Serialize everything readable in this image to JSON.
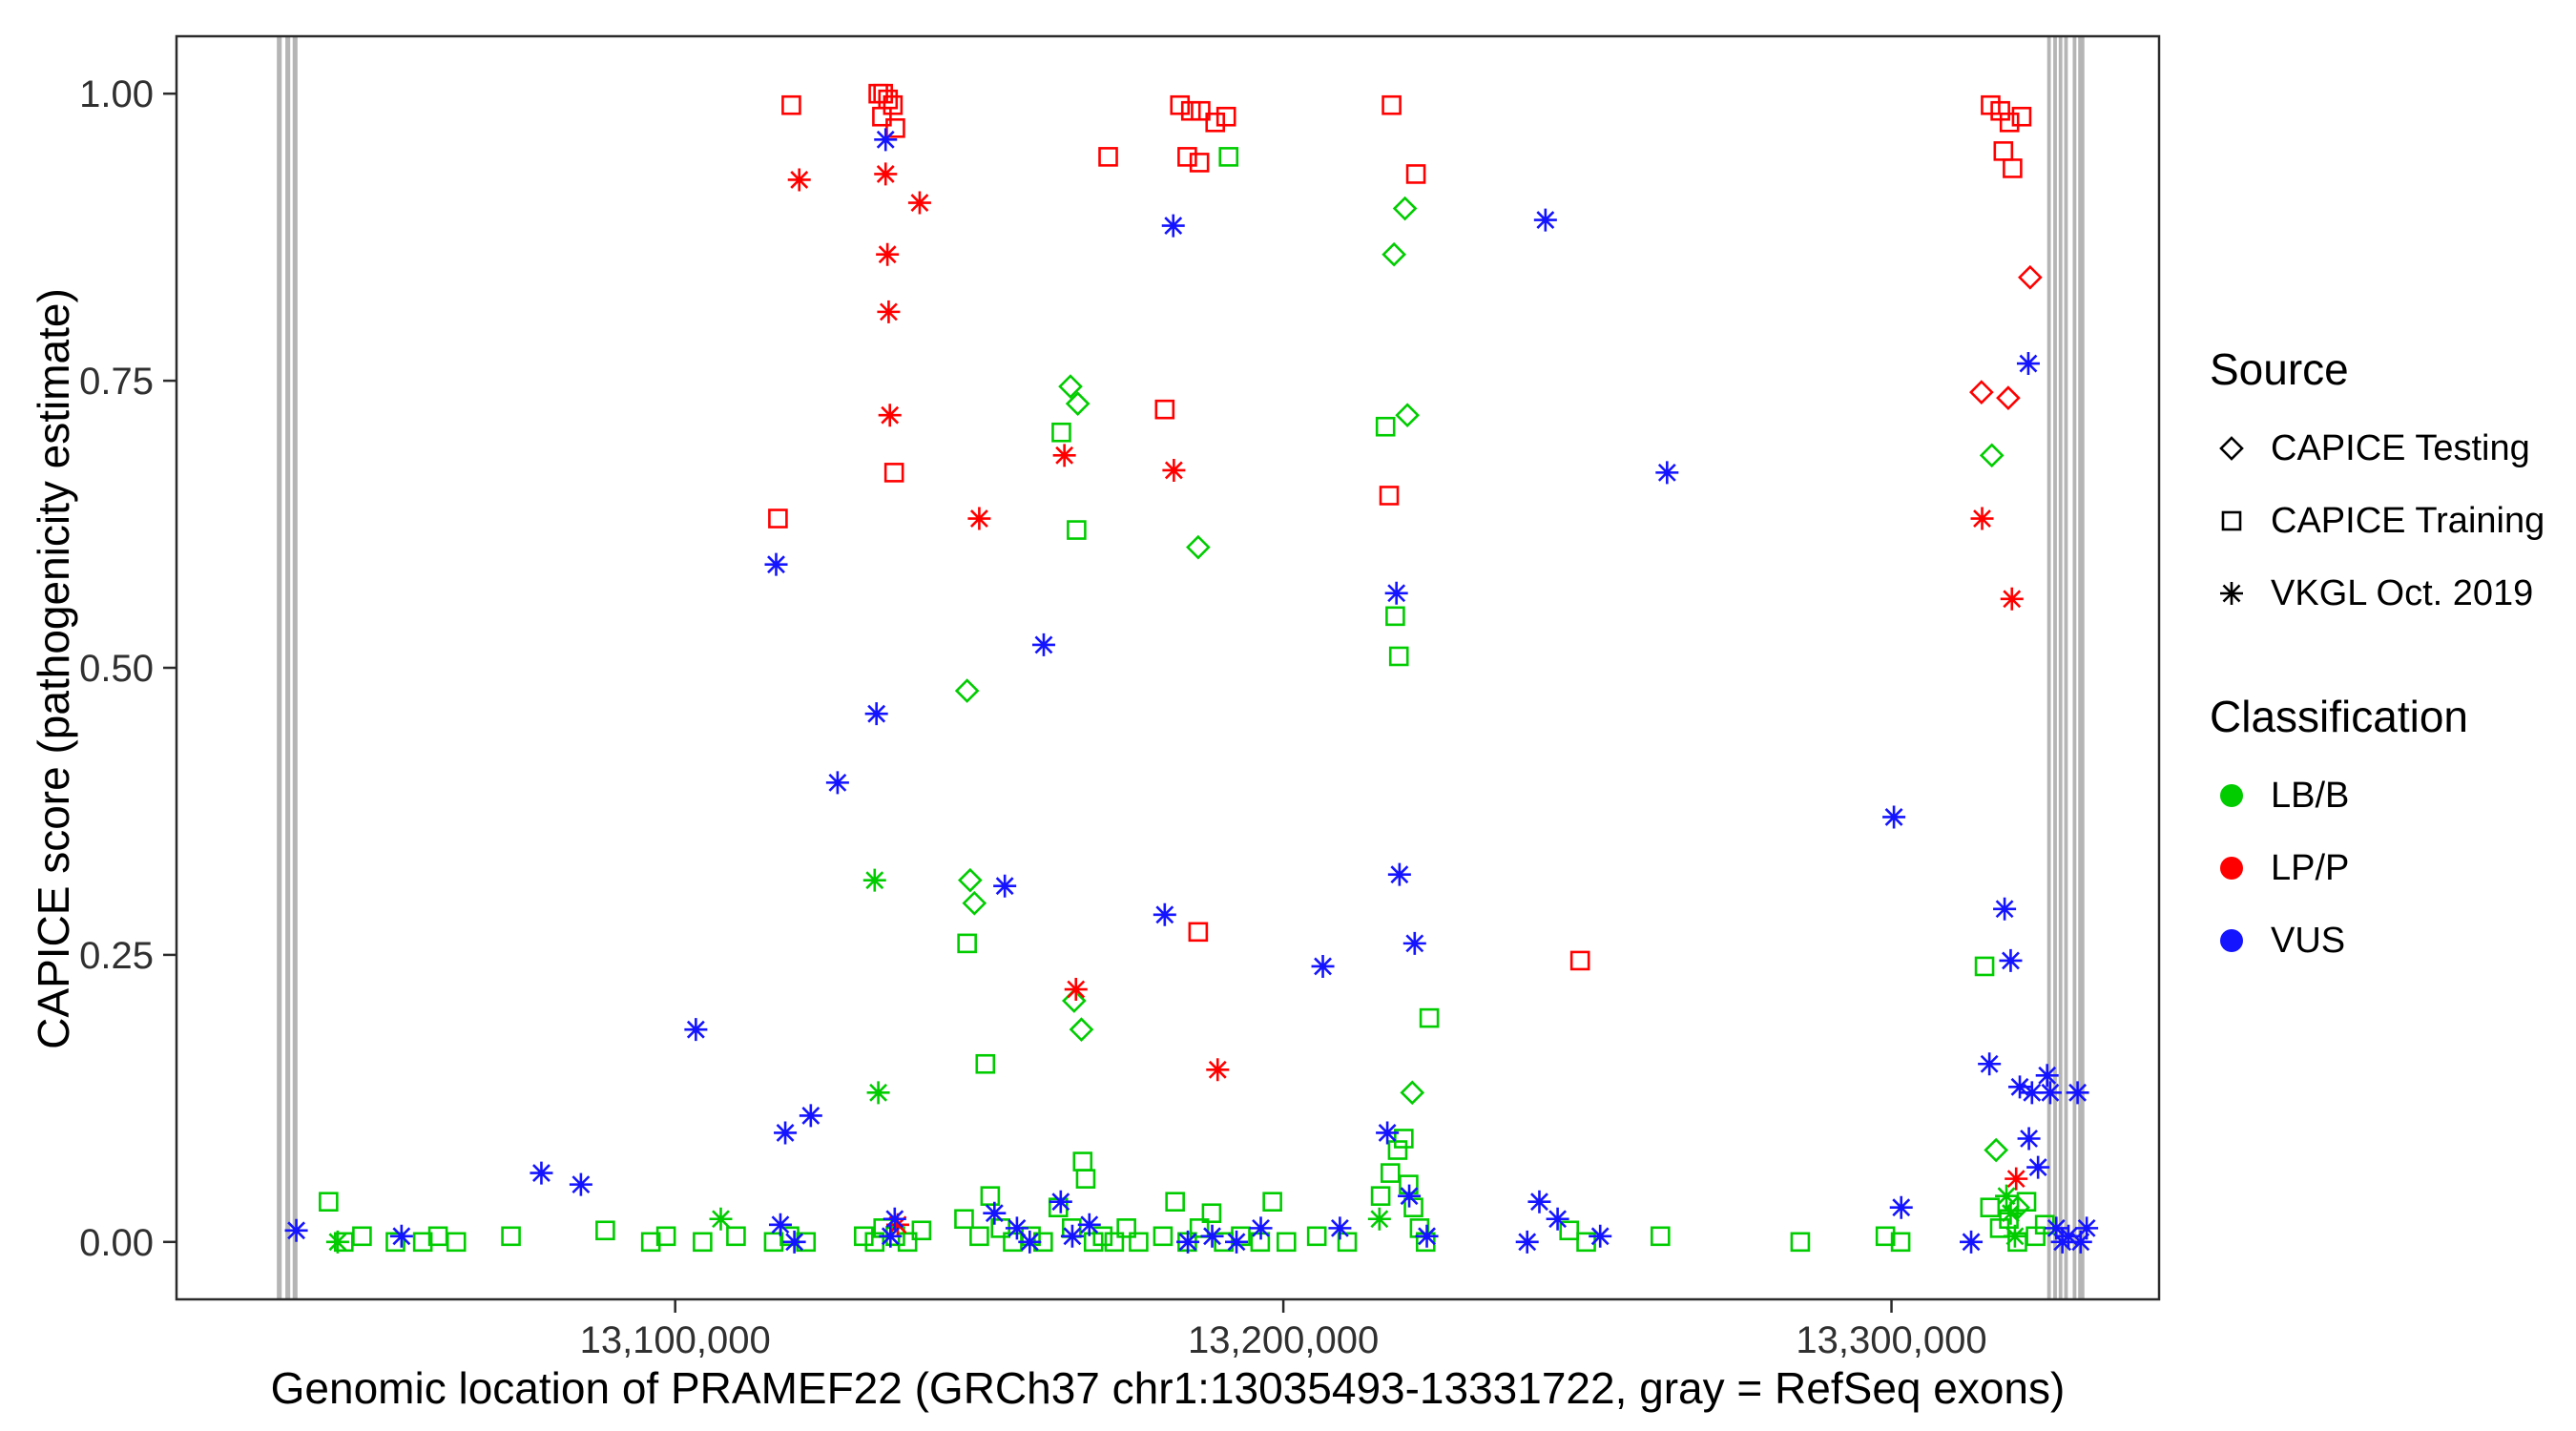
{
  "figure": {
    "background": "#ffffff",
    "panel_border_color": "#2b2b2b",
    "tick_label_color": "#303030"
  },
  "chart_data": {
    "type": "scatter",
    "title": "",
    "xlabel": "Genomic location of PRAMEF22 (GRCh37 chr1:13035493-13331722, gray = RefSeq exons)",
    "ylabel": "CAPICE score (pathogenicity estimate)",
    "xlim": [
      13018000,
      13344000
    ],
    "ylim": [
      -0.05,
      1.05
    ],
    "grid": false,
    "legend_position": "right",
    "x_ticks": [
      {
        "value": 13100000,
        "label": "13,100,000"
      },
      {
        "value": 13200000,
        "label": "13,200,000"
      },
      {
        "value": 13300000,
        "label": "13,300,000"
      }
    ],
    "y_ticks": [
      {
        "value": 0.0,
        "label": "0.00"
      },
      {
        "value": 0.25,
        "label": "0.25"
      },
      {
        "value": 0.5,
        "label": "0.50"
      },
      {
        "value": 0.75,
        "label": "0.75"
      },
      {
        "value": 1.0,
        "label": "1.00"
      }
    ],
    "exon_color": "#b5b5b5",
    "exons": [
      [
        13034500,
        13035300
      ],
      [
        13035900,
        13036700
      ],
      [
        13037100,
        13037900
      ],
      [
        13325600,
        13326200
      ],
      [
        13326600,
        13327200
      ],
      [
        13327500,
        13328100
      ],
      [
        13328400,
        13329000
      ],
      [
        13329800,
        13330400
      ],
      [
        13330700,
        13331722
      ]
    ],
    "legend": {
      "source_title": "Source",
      "source_items": [
        {
          "label": "CAPICE Testing",
          "marker": "diamond"
        },
        {
          "label": "CAPICE Training",
          "marker": "square"
        },
        {
          "label": "VKGL Oct. 2019",
          "marker": "asterisk"
        }
      ],
      "classification_title": "Classification",
      "classification_items": [
        {
          "label": "LB/B",
          "color": "#00cc00"
        },
        {
          "label": "LP/P",
          "color": "#ff0000"
        },
        {
          "label": "VUS",
          "color": "#1414ff"
        }
      ]
    },
    "series": [
      {
        "name": "CAPICE Testing / LB/B",
        "source": "CAPICE Testing",
        "classification": "LB/B",
        "marker": "diamond",
        "color": "#00cc00",
        "points": [
          [
            13148000,
            0.48
          ],
          [
            13148500,
            0.315
          ],
          [
            13149200,
            0.295
          ],
          [
            13165000,
            0.745
          ],
          [
            13166200,
            0.73
          ],
          [
            13165600,
            0.21
          ],
          [
            13166800,
            0.185
          ],
          [
            13186000,
            0.605
          ],
          [
            13218200,
            0.86
          ],
          [
            13220000,
            0.9
          ],
          [
            13220400,
            0.72
          ],
          [
            13221200,
            0.13
          ],
          [
            13316500,
            0.685
          ],
          [
            13317200,
            0.08
          ],
          [
            13320800,
            0.03
          ]
        ]
      },
      {
        "name": "CAPICE Testing / LP/P",
        "source": "CAPICE Testing",
        "classification": "LP/P",
        "marker": "diamond",
        "color": "#ff0000",
        "points": [
          [
            13322800,
            0.84
          ],
          [
            13314800,
            0.74
          ],
          [
            13319200,
            0.735
          ]
        ]
      },
      {
        "name": "CAPICE Training / LB/B",
        "source": "CAPICE Training",
        "classification": "LB/B",
        "marker": "square",
        "color": "#00cc00",
        "points": [
          [
            13191000,
            0.945
          ],
          [
            13163500,
            0.705
          ],
          [
            13166000,
            0.62
          ],
          [
            13148000,
            0.26
          ],
          [
            13151000,
            0.155
          ],
          [
            13167000,
            0.07
          ],
          [
            13216800,
            0.71
          ],
          [
            13219000,
            0.51
          ],
          [
            13218400,
            0.545
          ],
          [
            13224000,
            0.195
          ],
          [
            13315300,
            0.24
          ],
          [
            13043000,
            0.035
          ],
          [
            13045500,
            0.0
          ],
          [
            13048500,
            0.005
          ],
          [
            13054000,
            0.0
          ],
          [
            13058500,
            0.0
          ],
          [
            13061000,
            0.005
          ],
          [
            13064000,
            0.0
          ],
          [
            13073000,
            0.005
          ],
          [
            13088500,
            0.01
          ],
          [
            13096000,
            0.0
          ],
          [
            13098500,
            0.005
          ],
          [
            13104500,
            0.0
          ],
          [
            13110000,
            0.005
          ],
          [
            13116200,
            0.0
          ],
          [
            13118800,
            0.005
          ],
          [
            13121500,
            0.0
          ],
          [
            13131000,
            0.005
          ],
          [
            13132800,
            0.0
          ],
          [
            13134200,
            0.012
          ],
          [
            13136200,
            0.005
          ],
          [
            13138200,
            0.0
          ],
          [
            13140500,
            0.01
          ],
          [
            13147500,
            0.02
          ],
          [
            13150000,
            0.005
          ],
          [
            13151800,
            0.04
          ],
          [
            13153500,
            0.012
          ],
          [
            13155500,
            0.0
          ],
          [
            13158500,
            0.005
          ],
          [
            13160500,
            0.0
          ],
          [
            13163000,
            0.03
          ],
          [
            13165200,
            0.012
          ],
          [
            13167500,
            0.055
          ],
          [
            13168800,
            0.0
          ],
          [
            13170300,
            0.005
          ],
          [
            13172200,
            0.0
          ],
          [
            13174200,
            0.012
          ],
          [
            13176200,
            0.0
          ],
          [
            13180200,
            0.005
          ],
          [
            13182200,
            0.035
          ],
          [
            13184200,
            0.0
          ],
          [
            13186200,
            0.012
          ],
          [
            13188200,
            0.025
          ],
          [
            13190200,
            0.0
          ],
          [
            13193000,
            0.005
          ],
          [
            13196200,
            0.0
          ],
          [
            13198200,
            0.035
          ],
          [
            13200500,
            0.0
          ],
          [
            13205500,
            0.005
          ],
          [
            13210500,
            0.0
          ],
          [
            13216000,
            0.04
          ],
          [
            13217600,
            0.06
          ],
          [
            13218800,
            0.08
          ],
          [
            13219800,
            0.09
          ],
          [
            13220600,
            0.05
          ],
          [
            13221400,
            0.03
          ],
          [
            13222400,
            0.012
          ],
          [
            13223400,
            0.0
          ],
          [
            13247000,
            0.01
          ],
          [
            13249800,
            0.0
          ],
          [
            13262000,
            0.005
          ],
          [
            13285000,
            0.0
          ],
          [
            13299000,
            0.005
          ],
          [
            13301500,
            0.0
          ],
          [
            13316200,
            0.03
          ],
          [
            13317800,
            0.012
          ],
          [
            13319300,
            0.02
          ],
          [
            13320700,
            0.0
          ],
          [
            13322200,
            0.035
          ],
          [
            13323700,
            0.005
          ],
          [
            13325200,
            0.015
          ]
        ]
      },
      {
        "name": "CAPICE Training / LP/P",
        "source": "CAPICE Training",
        "classification": "LP/P",
        "marker": "square",
        "color": "#ff0000",
        "points": [
          [
            13119100,
            0.99
          ],
          [
            13133400,
            1.0
          ],
          [
            13134200,
            1.0
          ],
          [
            13135000,
            0.995
          ],
          [
            13135800,
            0.99
          ],
          [
            13134000,
            0.98
          ],
          [
            13136200,
            0.97
          ],
          [
            13171200,
            0.945
          ],
          [
            13183000,
            0.99
          ],
          [
            13184800,
            0.985
          ],
          [
            13186400,
            0.985
          ],
          [
            13188800,
            0.975
          ],
          [
            13190600,
            0.98
          ],
          [
            13184200,
            0.945
          ],
          [
            13186200,
            0.94
          ],
          [
            13217800,
            0.99
          ],
          [
            13221800,
            0.93
          ],
          [
            13116900,
            0.63
          ],
          [
            13136000,
            0.67
          ],
          [
            13180500,
            0.725
          ],
          [
            13217400,
            0.65
          ],
          [
            13186000,
            0.27
          ],
          [
            13248800,
            0.245
          ],
          [
            13316300,
            0.99
          ],
          [
            13317900,
            0.985
          ],
          [
            13319400,
            0.975
          ],
          [
            13318400,
            0.95
          ],
          [
            13319900,
            0.935
          ],
          [
            13321400,
            0.98
          ]
        ]
      },
      {
        "name": "VKGL Oct. 2019 / LB/B",
        "source": "VKGL Oct. 2019",
        "classification": "LB/B",
        "marker": "asterisk",
        "color": "#00cc00",
        "points": [
          [
            13044500,
            0.0
          ],
          [
            13107500,
            0.02
          ],
          [
            13132800,
            0.315
          ],
          [
            13133400,
            0.13
          ],
          [
            13215800,
            0.02
          ],
          [
            13318900,
            0.04
          ],
          [
            13319600,
            0.025
          ],
          [
            13320300,
            0.005
          ]
        ]
      },
      {
        "name": "VKGL Oct. 2019 / LP/P",
        "source": "VKGL Oct. 2019",
        "classification": "LP/P",
        "marker": "asterisk",
        "color": "#ff0000",
        "points": [
          [
            13120400,
            0.925
          ],
          [
            13134600,
            0.93
          ],
          [
            13134900,
            0.86
          ],
          [
            13135100,
            0.81
          ],
          [
            13135300,
            0.72
          ],
          [
            13140200,
            0.905
          ],
          [
            13150000,
            0.63
          ],
          [
            13164000,
            0.685
          ],
          [
            13165900,
            0.22
          ],
          [
            13182000,
            0.672
          ],
          [
            13189200,
            0.15
          ],
          [
            13136600,
            0.015
          ],
          [
            13314900,
            0.63
          ],
          [
            13319800,
            0.56
          ],
          [
            13320500,
            0.055
          ]
        ]
      },
      {
        "name": "VKGL Oct. 2019 / VUS",
        "source": "VKGL Oct. 2019",
        "classification": "VUS",
        "marker": "asterisk",
        "color": "#1414ff",
        "points": [
          [
            13037700,
            0.01
          ],
          [
            13055000,
            0.005
          ],
          [
            13078000,
            0.06
          ],
          [
            13084500,
            0.05
          ],
          [
            13103400,
            0.185
          ],
          [
            13116600,
            0.59
          ],
          [
            13118100,
            0.095
          ],
          [
            13122300,
            0.11
          ],
          [
            13126700,
            0.4
          ],
          [
            13133100,
            0.46
          ],
          [
            13134600,
            0.96
          ],
          [
            13136100,
            0.02
          ],
          [
            13117300,
            0.015
          ],
          [
            13119600,
            0.0
          ],
          [
            13135400,
            0.005
          ],
          [
            13152500,
            0.025
          ],
          [
            13154200,
            0.31
          ],
          [
            13156200,
            0.012
          ],
          [
            13158300,
            0.0
          ],
          [
            13160600,
            0.52
          ],
          [
            13163400,
            0.035
          ],
          [
            13165300,
            0.005
          ],
          [
            13168100,
            0.015
          ],
          [
            13180500,
            0.285
          ],
          [
            13181900,
            0.885
          ],
          [
            13184300,
            0.0
          ],
          [
            13188300,
            0.005
          ],
          [
            13192300,
            0.0
          ],
          [
            13196300,
            0.012
          ],
          [
            13206500,
            0.24
          ],
          [
            13209300,
            0.012
          ],
          [
            13219100,
            0.32
          ],
          [
            13221600,
            0.26
          ],
          [
            13218600,
            0.565
          ],
          [
            13217100,
            0.095
          ],
          [
            13220700,
            0.04
          ],
          [
            13223600,
            0.005
          ],
          [
            13243100,
            0.89
          ],
          [
            13263100,
            0.67
          ],
          [
            13242100,
            0.035
          ],
          [
            13245100,
            0.02
          ],
          [
            13240100,
            0.0
          ],
          [
            13252100,
            0.005
          ],
          [
            13300400,
            0.37
          ],
          [
            13301600,
            0.03
          ],
          [
            13313100,
            0.0
          ],
          [
            13316100,
            0.155
          ],
          [
            13318600,
            0.29
          ],
          [
            13319600,
            0.245
          ],
          [
            13321100,
            0.135
          ],
          [
            13323100,
            0.13
          ],
          [
            13325600,
            0.145
          ],
          [
            13322600,
            0.09
          ],
          [
            13324100,
            0.065
          ],
          [
            13326100,
            0.13
          ],
          [
            13327100,
            0.012
          ],
          [
            13328100,
            0.0
          ],
          [
            13329100,
            0.005
          ],
          [
            13330600,
            0.13
          ],
          [
            13331100,
            0.0
          ],
          [
            13332100,
            0.012
          ],
          [
            13322500,
            0.765
          ]
        ]
      }
    ]
  }
}
